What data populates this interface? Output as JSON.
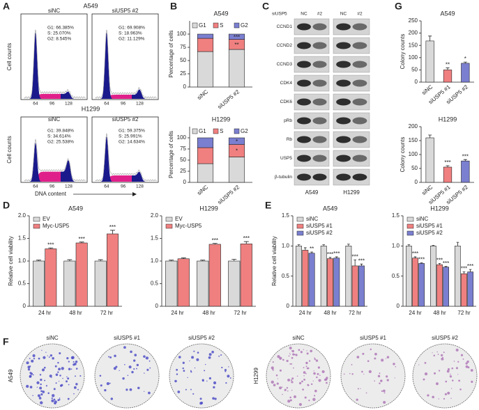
{
  "panel_labels": [
    "A",
    "B",
    "C",
    "D",
    "E",
    "F",
    "G"
  ],
  "flow": {
    "cell_lines": [
      "A549",
      "H1299"
    ],
    "conditions": [
      "siNC",
      "siUSP5 #2"
    ],
    "stats": [
      [
        "G1: 66.385%",
        "S: 25.070%",
        "G2: 8.545%"
      ],
      [
        "G1: 69.908%",
        "S: 18.963%",
        "G2: 11.129%"
      ],
      [
        "G1: 39.848%",
        "S: 34.614%",
        "G2: 25.538%"
      ],
      [
        "G1: 59.375%",
        "S: 25.991%",
        "G2: 14.634%"
      ]
    ],
    "y_label": "Cell counts",
    "x_label": "DNA content",
    "x_ticks": [
      "64",
      "96",
      "128"
    ]
  },
  "western": {
    "header": "siUSP5",
    "lanes": [
      "NC",
      "#2"
    ],
    "proteins": [
      "CCND1",
      "CCND2",
      "CCND3",
      "CDK4",
      "CDK6",
      "pRb",
      "Rb",
      "USP5",
      "β-tubulin"
    ],
    "cell_lines": [
      "A549",
      "H1299"
    ]
  },
  "colonies": {
    "conditions": [
      "siNC",
      "siUSP5 #1",
      "siUSP5 #2"
    ],
    "cell_lines": [
      "A549",
      "H1299"
    ]
  },
  "chart_data": [
    {
      "type": "bar",
      "stacked": true,
      "title": "A549",
      "y_label": "Percentage of cells",
      "categories": [
        "siNC",
        "siUSP5 #2"
      ],
      "series": [
        {
          "name": "G1",
          "color": "#d9d9d9",
          "values": [
            67,
            71
          ]
        },
        {
          "name": "S",
          "color": "#f08080",
          "values": [
            25,
            19
          ],
          "stars": [
            null,
            "**"
          ]
        },
        {
          "name": "G2",
          "color": "#7b7fd0",
          "values": [
            8,
            10
          ],
          "stars": [
            null,
            "***"
          ]
        }
      ],
      "ylim": [
        0,
        125
      ],
      "yticks": [
        0,
        25,
        50,
        75,
        100
      ],
      "legend": "top"
    },
    {
      "type": "bar",
      "stacked": true,
      "title": "H1299",
      "y_label": "Percentage of cells",
      "categories": [
        "siNC",
        "siUSP5 #2"
      ],
      "series": [
        {
          "name": "G1",
          "color": "#d9d9d9",
          "values": [
            42,
            57
          ]
        },
        {
          "name": "S",
          "color": "#f08080",
          "values": [
            36,
            28
          ],
          "stars": [
            null,
            "*"
          ]
        },
        {
          "name": "G2",
          "color": "#7b7fd0",
          "values": [
            22,
            15
          ],
          "stars": [
            null,
            "*"
          ]
        }
      ],
      "ylim": [
        0,
        125
      ],
      "yticks": [
        0,
        25,
        50,
        75,
        100
      ],
      "legend": "top"
    },
    {
      "type": "bar",
      "title": "A549",
      "y_label": "Relative cell viability",
      "categories": [
        "24 hr",
        "48 hr",
        "72 hr"
      ],
      "series": [
        {
          "name": "EV",
          "color": "#d9d9d9",
          "values": [
            1,
            1,
            1
          ],
          "errors": [
            0.02,
            0.03,
            0.03
          ]
        },
        {
          "name": "Myc-USP5",
          "color": "#f08080",
          "values": [
            1.27,
            1.4,
            1.6
          ],
          "errors": [
            0.02,
            0.02,
            0.08
          ],
          "stars": [
            "***",
            "***",
            "***"
          ]
        }
      ],
      "ylim": [
        0,
        2
      ],
      "yticks": [
        0,
        0.5,
        {
          "value": 1,
          "label": "1.0"
        },
        1.5,
        {
          "value": 2,
          "label": "2.0"
        }
      ],
      "legend": "top-left"
    },
    {
      "type": "bar",
      "title": "H1299",
      "categories": [
        "24 hr",
        "48 hr",
        "72 hr"
      ],
      "series": [
        {
          "name": "EV",
          "color": "#d9d9d9",
          "values": [
            1,
            1,
            1
          ],
          "errors": [
            0.02,
            0.02,
            0.04
          ]
        },
        {
          "name": "Myc-USP5",
          "color": "#f08080",
          "values": [
            1.05,
            1.37,
            1.38
          ],
          "errors": [
            0.02,
            0.02,
            0.05
          ],
          "stars": [
            null,
            "***",
            "***"
          ]
        }
      ],
      "ylim": [
        0,
        2
      ],
      "yticks": [
        0,
        0.5,
        {
          "value": 1,
          "label": "1.0"
        },
        1.5,
        {
          "value": 2,
          "label": "2.0"
        }
      ],
      "legend": "top-left"
    },
    {
      "type": "bar",
      "title": "A549",
      "y_label": "Relative cell viability",
      "categories": [
        "24 hr",
        "48 hr",
        "72 hr"
      ],
      "series": [
        {
          "name": "siNC",
          "color": "#d9d9d9",
          "values": [
            1,
            1,
            1
          ],
          "errors": [
            0.02,
            0.02,
            0.03
          ]
        },
        {
          "name": "siUSP5 #1",
          "color": "#f08080",
          "values": [
            0.93,
            0.79,
            0.67
          ],
          "errors": [
            0.04,
            0.02,
            0.1
          ],
          "stars": [
            null,
            "***",
            "***"
          ]
        },
        {
          "name": "siUSP5 #2",
          "color": "#7b7fd0",
          "values": [
            0.88,
            0.8,
            0.67
          ],
          "errors": [
            0.02,
            0.02,
            0.03
          ],
          "stars": [
            "**",
            "***",
            "***"
          ]
        }
      ],
      "ylim": [
        0,
        1.5
      ],
      "yticks": [
        0,
        0.5,
        {
          "value": 1,
          "label": "1.0"
        },
        1.5
      ],
      "legend": "top-left"
    },
    {
      "type": "bar",
      "title": "H1299",
      "categories": [
        "24 hr",
        "48 hr",
        "72 hr"
      ],
      "series": [
        {
          "name": "siNC",
          "color": "#d9d9d9",
          "values": [
            1,
            1,
            1
          ],
          "errors": [
            0.02,
            0.01,
            0.06
          ]
        },
        {
          "name": "siUSP5 #1",
          "color": "#f08080",
          "values": [
            0.8,
            0.69,
            0.54
          ],
          "errors": [
            0.02,
            0.02,
            0.03
          ],
          "stars": [
            "***",
            "***",
            "***"
          ]
        },
        {
          "name": "siUSP5 #2",
          "color": "#7b7fd0",
          "values": [
            0.71,
            0.65,
            0.57
          ],
          "errors": [
            0.01,
            0.01,
            0.04
          ],
          "stars": [
            "***",
            "***",
            "***"
          ]
        }
      ],
      "ylim": [
        0,
        1.5
      ],
      "yticks": [
        0,
        0.5,
        {
          "value": 1,
          "label": "1.0"
        },
        1.5
      ],
      "legend": "top-left"
    },
    {
      "type": "bar",
      "title": "A549",
      "y_label": "Colony counts",
      "categories": [
        "siNC",
        "siUSP5 #1",
        "siUSP5 #2"
      ],
      "values": [
        168,
        50,
        77
      ],
      "errors": [
        20,
        8,
        5
      ],
      "stars": [
        null,
        "**",
        "*"
      ],
      "colors": [
        "#d9d9d9",
        "#f08080",
        "#7b7fd0"
      ],
      "ylim": [
        0,
        250
      ],
      "yticks": [
        0,
        50,
        100,
        150,
        200,
        250
      ]
    },
    {
      "type": "bar",
      "title": "H1299",
      "y_label": "Colony counts",
      "categories": [
        "siNC",
        "siUSP5 #1",
        "siUSP5 #2"
      ],
      "values": [
        160,
        55,
        77
      ],
      "errors": [
        10,
        5,
        5
      ],
      "stars": [
        null,
        "***",
        "***"
      ],
      "colors": [
        "#d9d9d9",
        "#f08080",
        "#7b7fd0"
      ],
      "ylim": [
        0,
        200
      ],
      "yticks": [
        0,
        50,
        100,
        150,
        200
      ]
    }
  ]
}
